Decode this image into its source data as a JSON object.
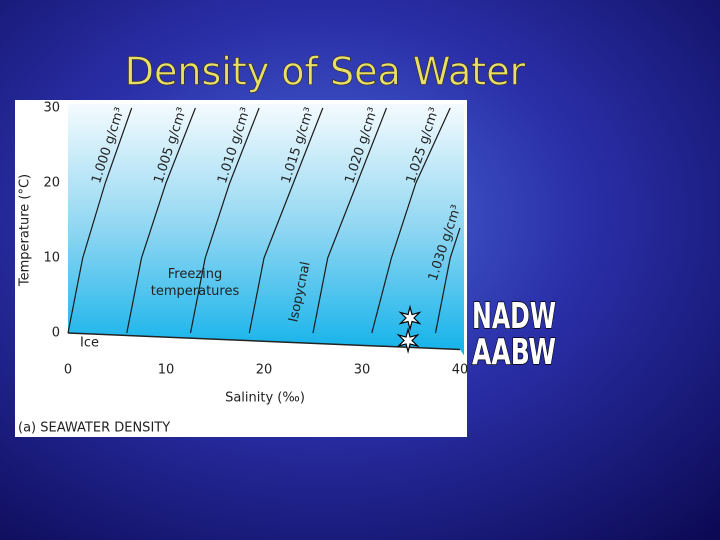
{
  "slide_title": "Density of Sea Water",
  "chart_data": {
    "type": "line",
    "caption": "(a) SEAWATER DENSITY",
    "x_label": "Salinity (‰)",
    "y_label": "Temperature (°C)",
    "xlim": [
      0,
      40
    ],
    "xticks": [
      0,
      10,
      20,
      30,
      40
    ],
    "ylim": [
      -3,
      30
    ],
    "yticks": [
      0,
      10,
      20,
      30
    ],
    "color": "#1a1a1a",
    "series": [
      {
        "name": "1.000 g/cm³",
        "x": [
          0,
          1.5,
          3.8,
          6.5
        ],
        "values": [
          0,
          10,
          20,
          30
        ]
      },
      {
        "name": "1.005 g/cm³",
        "x": [
          6,
          7.5,
          10,
          13
        ],
        "values": [
          0,
          10,
          20,
          30
        ]
      },
      {
        "name": "1.010 g/cm³",
        "x": [
          12.5,
          14,
          16.5,
          19.5
        ],
        "values": [
          0,
          10,
          20,
          30
        ]
      },
      {
        "name": "1.015 g/cm³",
        "x": [
          18.5,
          20,
          23,
          26
        ],
        "values": [
          0,
          10,
          20,
          30
        ]
      },
      {
        "name": "1.020 g/cm³",
        "x": [
          25,
          26.5,
          29.5,
          32.5
        ],
        "values": [
          0,
          10,
          20,
          30
        ]
      },
      {
        "name": "1.025 g/cm³",
        "x": [
          31,
          33,
          35.5,
          39
        ],
        "values": [
          0,
          10,
          20,
          30
        ]
      },
      {
        "name": "1.030 g/cm³",
        "x": [
          37.5,
          39,
          40
        ],
        "values": [
          0,
          10,
          14
        ]
      }
    ],
    "freezing_line": {
      "x": [
        0,
        40
      ],
      "values": [
        0,
        -2.2
      ]
    },
    "annotations": [
      "Freezing temperatures",
      "Isopycnal",
      "Ice"
    ],
    "water_masses": [
      {
        "name": "NADW",
        "x": 34.9,
        "y": 2
      },
      {
        "name": "AABW",
        "x": 34.7,
        "y": -1
      }
    ]
  }
}
